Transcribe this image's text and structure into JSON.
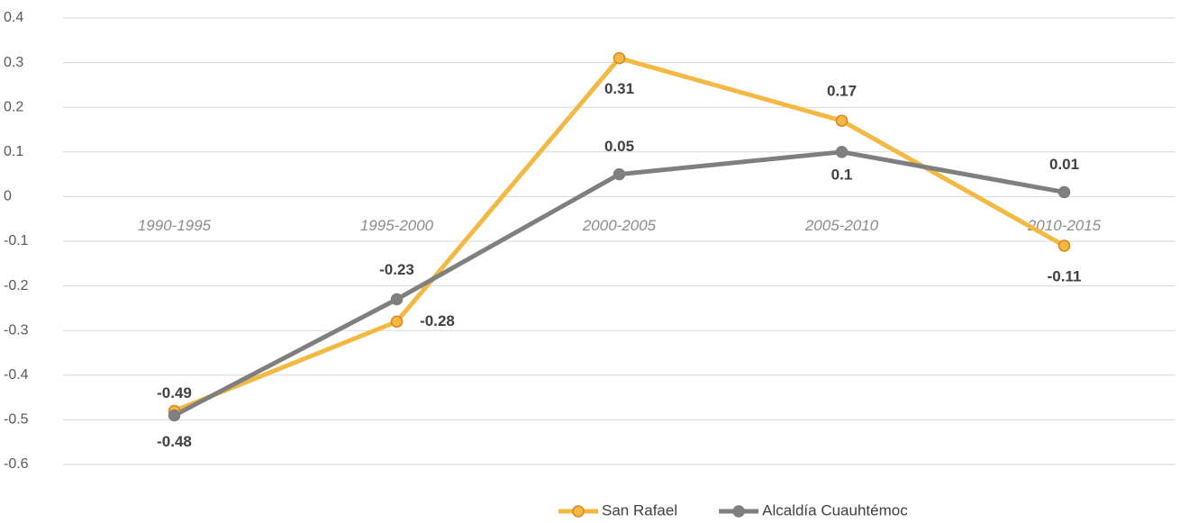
{
  "chart_data": {
    "type": "line",
    "categories": [
      "1990-1995",
      "1995-2000",
      "2000-2005",
      "2005-2010",
      "2010-2015"
    ],
    "series": [
      {
        "name": "San Rafael",
        "color": "#f4b942",
        "marker_edge": "#e0831c",
        "values": [
          -0.48,
          -0.28,
          0.31,
          0.17,
          -0.11
        ]
      },
      {
        "name": "Alcaldía Cuauhtémoc",
        "color": "#7f7f7f",
        "marker_edge": "#7f7f7f",
        "values": [
          -0.49,
          -0.23,
          0.05,
          0.1,
          0.01
        ]
      }
    ],
    "ylim": [
      -0.6,
      0.4
    ],
    "yticks": [
      0.4,
      0.3,
      0.2,
      0.1,
      0,
      -0.1,
      -0.2,
      -0.3,
      -0.4,
      -0.5,
      -0.6
    ],
    "grid": true,
    "legend": "bottom"
  }
}
